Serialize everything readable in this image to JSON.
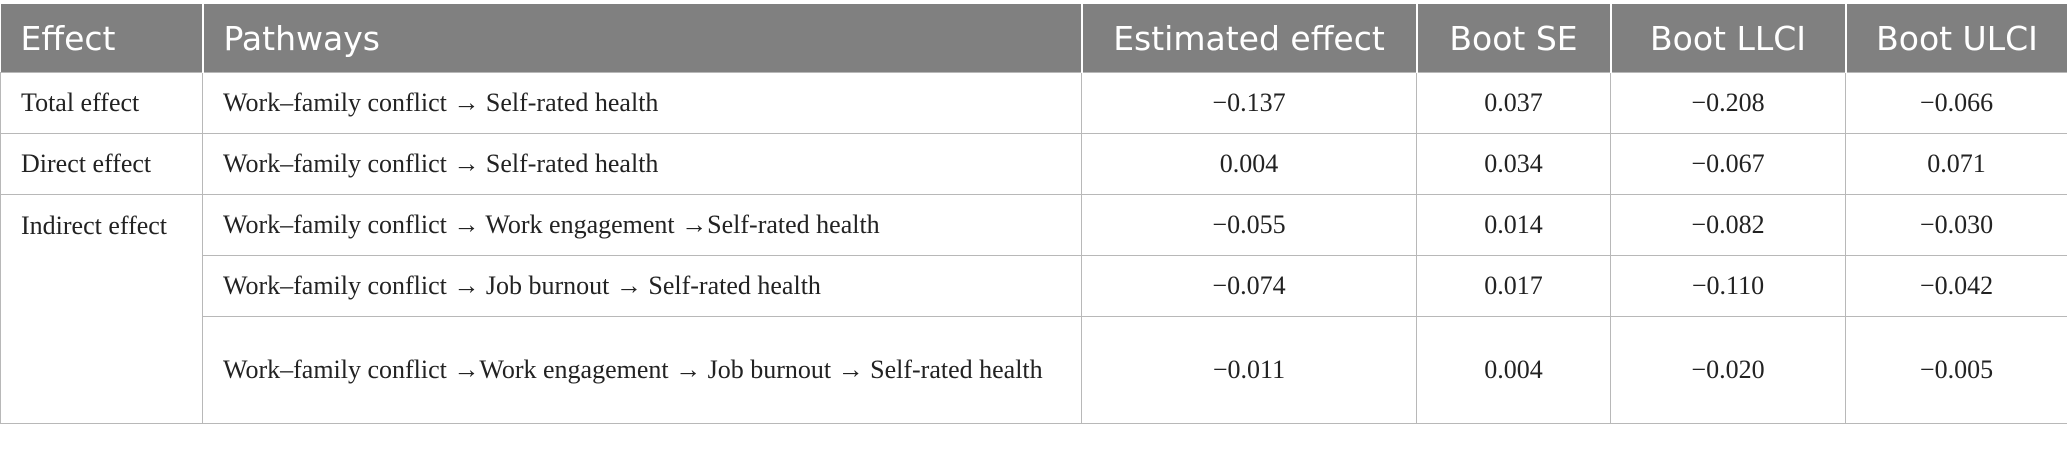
{
  "table": {
    "headers": {
      "effect": "Effect",
      "pathways": "Pathways",
      "estimated_effect": "Estimated effect",
      "boot_se": "Boot SE",
      "boot_llci": "Boot LLCI",
      "boot_ulci": "Boot ULCI"
    },
    "rows": [
      {
        "effect": "Total effect",
        "pathway": "Work–family conflict → Self-rated health",
        "estimated_effect": "−0.137",
        "boot_se": "0.037",
        "boot_llci": "−0.208",
        "boot_ulci": "−0.066"
      },
      {
        "effect": "Direct effect",
        "pathway": "Work–family conflict → Self-rated health",
        "estimated_effect": "0.004",
        "boot_se": "0.034",
        "boot_llci": "−0.067",
        "boot_ulci": "0.071"
      },
      {
        "effect": "Indirect effect",
        "pathway": "Work–family conflict → Work engagement →Self-rated health",
        "estimated_effect": "−0.055",
        "boot_se": "0.014",
        "boot_llci": "−0.082",
        "boot_ulci": "−0.030"
      },
      {
        "effect": "",
        "pathway": "Work–family conflict → Job burnout → Self-rated health",
        "estimated_effect": "−0.074",
        "boot_se": "0.017",
        "boot_llci": "−0.110",
        "boot_ulci": "−0.042"
      },
      {
        "effect": "",
        "pathway": "Work–family conflict →Work engagement → Job burnout → Self-rated health",
        "estimated_effect": "−0.011",
        "boot_se": "0.004",
        "boot_llci": "−0.020",
        "boot_ulci": "−0.005"
      }
    ]
  }
}
